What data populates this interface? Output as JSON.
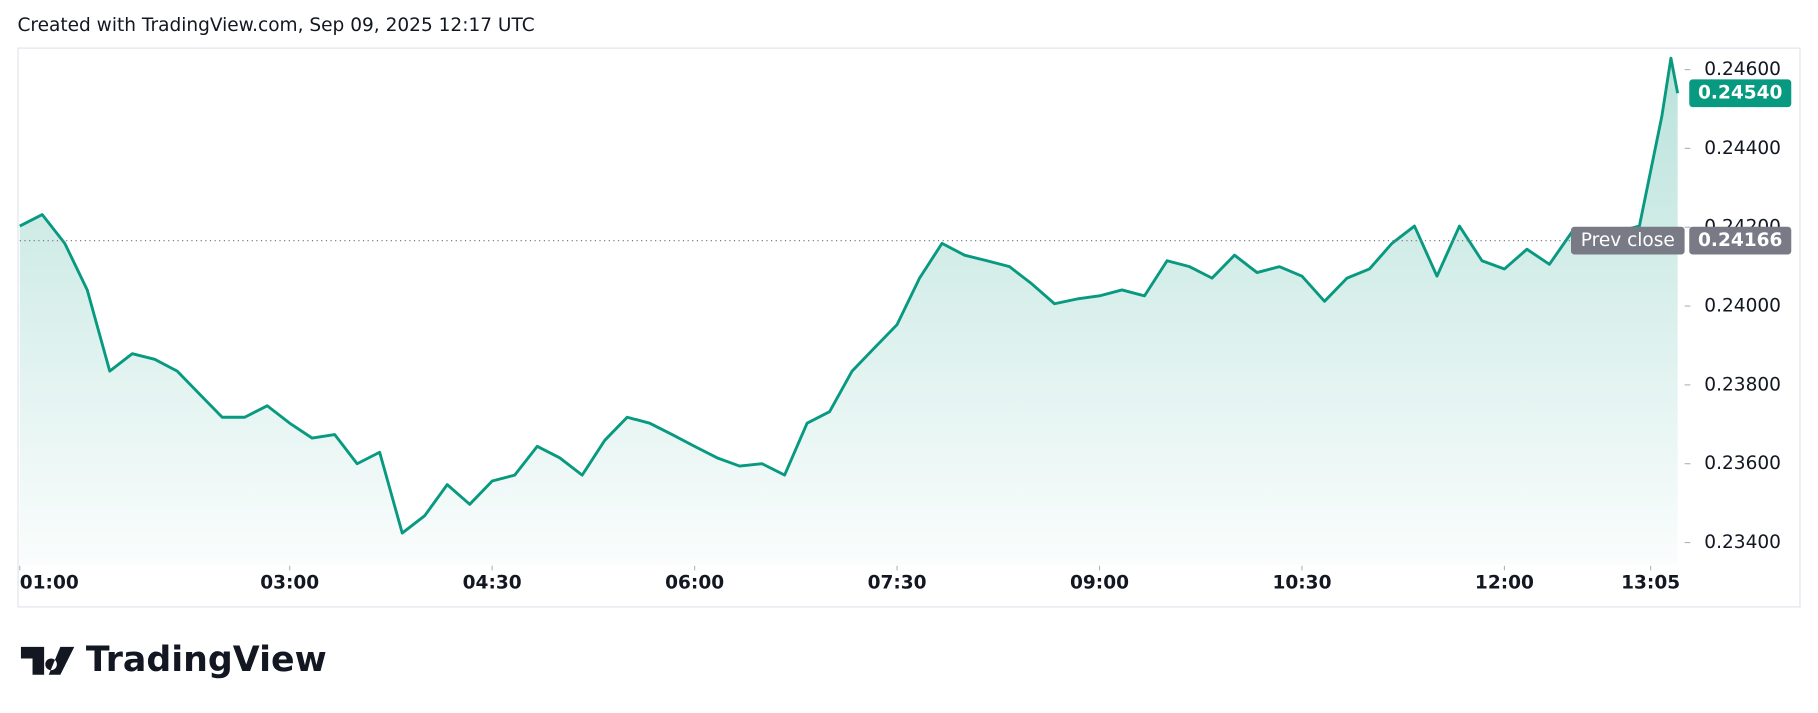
{
  "chart_data": {
    "type": "area",
    "title": "Created with TradingView.com, Sep 09, 2025 12:17 UTC",
    "color": "#089981",
    "x": [
      "01:00",
      "01:10",
      "01:20",
      "01:30",
      "01:40",
      "01:50",
      "02:00",
      "02:10",
      "02:20",
      "02:30",
      "02:40",
      "02:50",
      "03:00",
      "03:10",
      "03:20",
      "03:30",
      "03:40",
      "03:50",
      "04:00",
      "04:10",
      "04:20",
      "04:30",
      "04:40",
      "04:50",
      "05:00",
      "05:10",
      "05:20",
      "05:30",
      "05:40",
      "05:50",
      "06:00",
      "06:10",
      "06:20",
      "06:30",
      "06:40",
      "06:50",
      "07:00",
      "07:10",
      "07:20",
      "07:30",
      "07:40",
      "07:50",
      "08:00",
      "08:10",
      "08:20",
      "08:30",
      "08:40",
      "08:50",
      "09:00",
      "09:10",
      "09:20",
      "09:30",
      "09:40",
      "09:50",
      "10:00",
      "10:10",
      "10:20",
      "10:30",
      "10:40",
      "10:50",
      "11:00",
      "11:10",
      "11:20",
      "11:30",
      "11:40",
      "11:50",
      "12:00",
      "12:10",
      "12:20",
      "12:30",
      "12:40",
      "12:50",
      "13:00",
      "13:10",
      "13:14",
      "13:17"
    ],
    "values": [
      0.24203,
      0.24232,
      0.24159,
      0.24041,
      0.23835,
      0.23879,
      0.23865,
      0.23835,
      0.23776,
      0.23718,
      0.23718,
      0.23747,
      0.23703,
      0.23665,
      0.23674,
      0.236,
      0.23629,
      0.23424,
      0.23468,
      0.23547,
      0.23497,
      0.23556,
      0.23571,
      0.23644,
      0.23615,
      0.23571,
      0.23659,
      0.23718,
      0.23703,
      0.23674,
      0.23644,
      0.23615,
      0.23594,
      0.236,
      0.23571,
      0.23703,
      0.23732,
      0.23835,
      0.23894,
      0.23953,
      0.24071,
      0.24159,
      0.24129,
      0.24115,
      0.241,
      0.24056,
      0.24006,
      0.24018,
      0.24026,
      0.24041,
      0.24026,
      0.24115,
      0.241,
      0.24071,
      0.24129,
      0.24085,
      0.241,
      0.24076,
      0.24012,
      0.24071,
      0.24094,
      0.24159,
      0.24203,
      0.24076,
      0.24203,
      0.24115,
      0.24094,
      0.24144,
      0.24106,
      0.24188,
      0.24174,
      0.24188,
      0.24203,
      0.24482,
      0.24629,
      0.2454
    ],
    "last_label": "0.24540",
    "xlim": [
      "01:00",
      "13:17"
    ],
    "xticks": [
      "01:00",
      "03:00",
      "04:30",
      "06:00",
      "07:30",
      "09:00",
      "10:30",
      "12:00",
      "13:05"
    ],
    "ylim": [
      0.23344,
      0.24653
    ],
    "yticks": [
      {
        "value": 0.234,
        "label": "0.23400"
      },
      {
        "value": 0.236,
        "label": "0.23600"
      },
      {
        "value": 0.238,
        "label": "0.23800"
      },
      {
        "value": 0.24,
        "label": "0.24000"
      },
      {
        "value": 0.242,
        "label": "0.24200"
      },
      {
        "value": 0.244,
        "label": "0.24400"
      },
      {
        "value": 0.246,
        "label": "0.24600"
      }
    ],
    "prev_close": {
      "label": "Prev close",
      "value": 0.24166,
      "value_label": "0.24166"
    }
  },
  "brand": "TradingView"
}
